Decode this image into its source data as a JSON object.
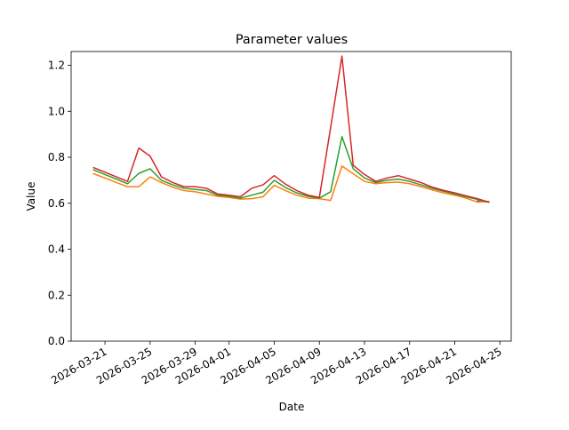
{
  "chart_data": {
    "type": "line",
    "title": "Parameter values",
    "xlabel": "Date",
    "ylabel": "Value",
    "x": [
      "2026-03-20",
      "2026-03-21",
      "2026-03-22",
      "2026-03-23",
      "2026-03-24",
      "2026-03-25",
      "2026-03-26",
      "2026-03-27",
      "2026-03-28",
      "2026-03-29",
      "2026-03-30",
      "2026-03-31",
      "2026-04-01",
      "2026-04-02",
      "2026-04-03",
      "2026-04-04",
      "2026-04-05",
      "2026-04-06",
      "2026-04-07",
      "2026-04-08",
      "2026-04-09",
      "2026-04-10",
      "2026-04-11",
      "2026-04-12",
      "2026-04-13",
      "2026-04-14",
      "2026-04-15",
      "2026-04-16",
      "2026-04-17",
      "2026-04-18",
      "2026-04-19",
      "2026-04-20",
      "2026-04-21",
      "2026-04-22",
      "2026-04-23",
      "2026-04-24"
    ],
    "series": [
      {
        "color": "#1f77b4",
        "values": [
          null,
          null,
          null,
          null,
          null,
          null,
          null,
          null,
          null,
          null,
          null,
          null,
          null,
          null,
          null,
          null,
          null,
          null,
          null,
          null,
          null,
          null,
          null,
          null,
          null,
          null,
          null,
          null,
          null,
          null,
          null,
          null,
          null,
          null,
          0.61,
          0.605
        ]
      },
      {
        "color": "#ff7f0e",
        "values": [
          0.728,
          0.71,
          0.69,
          0.672,
          0.672,
          0.715,
          0.69,
          0.67,
          0.655,
          0.65,
          0.64,
          0.63,
          0.625,
          0.618,
          0.62,
          0.628,
          0.678,
          0.655,
          0.635,
          0.622,
          0.62,
          0.612,
          0.762,
          0.728,
          0.695,
          0.685,
          0.69,
          0.692,
          0.685,
          0.672,
          0.658,
          0.645,
          0.635,
          0.622,
          0.605,
          0.608
        ]
      },
      {
        "color": "#2ca02c",
        "values": [
          0.745,
          0.725,
          0.705,
          0.685,
          0.73,
          0.75,
          0.7,
          0.68,
          0.665,
          0.66,
          0.655,
          0.635,
          0.63,
          0.622,
          0.635,
          0.648,
          0.7,
          0.668,
          0.645,
          0.63,
          0.622,
          0.65,
          0.89,
          0.75,
          0.71,
          0.69,
          0.7,
          0.705,
          0.695,
          0.68,
          0.665,
          0.652,
          0.64,
          0.628,
          0.617,
          0.605
        ]
      },
      {
        "color": "#d62728",
        "values": [
          0.755,
          0.735,
          0.715,
          0.695,
          0.84,
          0.805,
          0.715,
          0.69,
          0.672,
          0.672,
          0.665,
          0.64,
          0.635,
          0.628,
          0.665,
          0.68,
          0.72,
          0.683,
          0.655,
          0.635,
          0.625,
          0.93,
          1.24,
          0.765,
          0.725,
          0.695,
          0.71,
          0.72,
          0.705,
          0.69,
          0.67,
          0.656,
          0.645,
          0.632,
          0.62,
          0.605
        ]
      }
    ],
    "xlim": [
      "2026-03-18",
      "2026-04-26"
    ],
    "xticks": [
      "2026-03-21",
      "2026-03-25",
      "2026-03-29",
      "2026-04-01",
      "2026-04-05",
      "2026-04-09",
      "2026-04-13",
      "2026-04-17",
      "2026-04-21",
      "2026-04-25"
    ],
    "ylim": [
      0,
      1.26
    ],
    "yticks": [
      {
        "value": 0,
        "label": "0.0"
      },
      0.2,
      0.4,
      0.6,
      0.8,
      {
        "value": 1,
        "label": "1.0"
      },
      1.2
    ]
  }
}
